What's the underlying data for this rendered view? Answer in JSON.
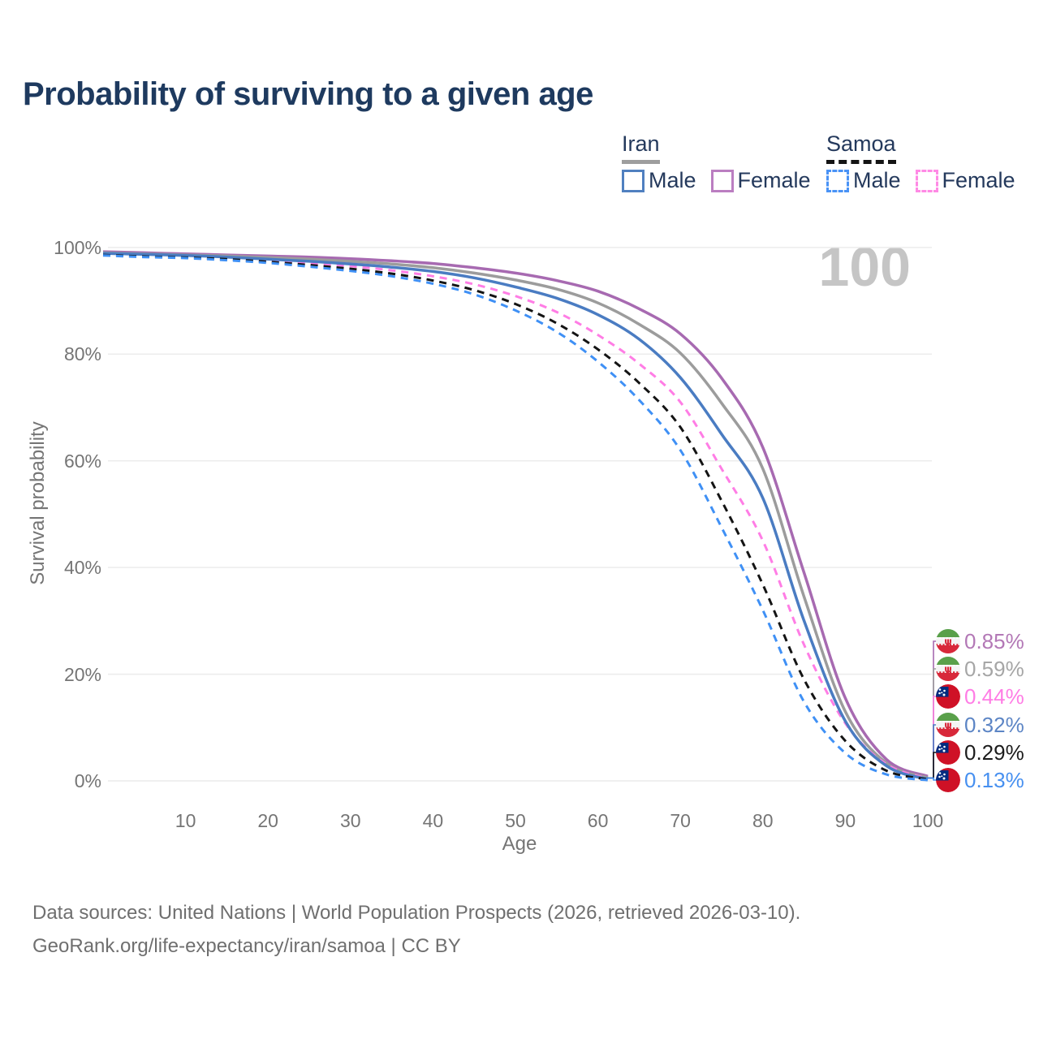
{
  "title": "Probability of surviving to a given age",
  "watermark": "100",
  "legend": {
    "groups": [
      {
        "name": "Iran",
        "underline_style": "solid",
        "underline_color": "#9e9e9e",
        "items": [
          {
            "label": "Male",
            "color": "#5080c0",
            "dashed": false
          },
          {
            "label": "Female",
            "color": "#bb7ec1",
            "dashed": false
          }
        ]
      },
      {
        "name": "Samoa",
        "underline_style": "dashed",
        "underline_color": "#141414",
        "items": [
          {
            "label": "Male",
            "color": "#4a93f6",
            "dashed": true
          },
          {
            "label": "Female",
            "color": "#ff8ae5",
            "dashed": true
          }
        ]
      }
    ]
  },
  "axes": {
    "y_title": "Survival probability",
    "y_ticks": [
      {
        "label": "0%",
        "value": 0
      },
      {
        "label": "20%",
        "value": 20
      },
      {
        "label": "40%",
        "value": 40
      },
      {
        "label": "60%",
        "value": 60
      },
      {
        "label": "80%",
        "value": 80
      },
      {
        "label": "100%",
        "value": 100
      }
    ],
    "x_title": "Age",
    "x_ticks": [
      10,
      20,
      30,
      40,
      50,
      60,
      70,
      80,
      90,
      100
    ]
  },
  "chart_data": {
    "type": "line",
    "title": "Probability of surviving to a given age",
    "xlabel": "Age",
    "ylabel": "Survival probability",
    "xlim": [
      0,
      100
    ],
    "ylim": [
      0,
      100
    ],
    "grid": "horizontal",
    "x": [
      0,
      5,
      10,
      15,
      20,
      25,
      30,
      35,
      40,
      45,
      50,
      55,
      60,
      65,
      70,
      75,
      80,
      85,
      90,
      95,
      100
    ],
    "series": [
      {
        "name": "Iran Female",
        "country": "Iran",
        "sex": "Female",
        "color": "#a76ab1",
        "dashed": false,
        "end_label": "0.85%",
        "label_color": "#b378b6",
        "flag": "iran",
        "values": [
          99.2,
          99.0,
          98.8,
          98.6,
          98.4,
          98.2,
          97.9,
          97.5,
          97.0,
          96.2,
          95.2,
          93.8,
          91.8,
          88.5,
          83.8,
          75.5,
          62.5,
          39.0,
          15.5,
          4.0,
          0.85
        ]
      },
      {
        "name": "Iran Both sexes",
        "country": "Iran",
        "sex": "Both",
        "color": "#9c9c9c",
        "dashed": false,
        "end_label": "0.59%",
        "label_color": "#a6a6a6",
        "flag": "iran",
        "values": [
          99.0,
          98.8,
          98.6,
          98.4,
          98.1,
          97.8,
          97.4,
          96.9,
          96.2,
          95.2,
          93.9,
          92.2,
          89.6,
          85.6,
          80.2,
          70.8,
          58.5,
          34.5,
          13.0,
          3.3,
          0.59
        ]
      },
      {
        "name": "Samoa Female",
        "country": "Samoa",
        "sex": "Female",
        "color": "#ff7de5",
        "dashed": true,
        "end_label": "0.44%",
        "label_color": "#ff7de5",
        "flag": "samoa",
        "values": [
          98.7,
          98.5,
          98.3,
          98.0,
          97.6,
          97.1,
          96.5,
          95.7,
          94.6,
          93.1,
          90.9,
          87.9,
          83.6,
          78.2,
          71.0,
          58.5,
          45.0,
          25.5,
          10.8,
          3.1,
          0.44
        ]
      },
      {
        "name": "Iran Male",
        "country": "Iran",
        "sex": "Male",
        "color": "#4a7cc2",
        "dashed": false,
        "end_label": "0.32%",
        "label_color": "#5c85c5",
        "flag": "iran",
        "values": [
          98.9,
          98.7,
          98.5,
          98.2,
          97.8,
          97.4,
          96.9,
          96.3,
          95.5,
          94.3,
          92.6,
          90.5,
          87.4,
          82.8,
          75.6,
          65.0,
          53.0,
          30.0,
          11.2,
          2.8,
          0.32
        ]
      },
      {
        "name": "Samoa Both sexes",
        "country": "Samoa",
        "sex": "Both",
        "color": "#141414",
        "dashed": true,
        "end_label": "0.29%",
        "label_color": "#1c1c1c",
        "flag": "samoa",
        "values": [
          98.6,
          98.3,
          98.1,
          97.8,
          97.3,
          96.7,
          96.0,
          95.1,
          93.8,
          92.0,
          89.4,
          85.8,
          80.9,
          74.6,
          66.3,
          52.5,
          36.8,
          19.0,
          7.5,
          1.9,
          0.29
        ]
      },
      {
        "name": "Samoa Male",
        "country": "Samoa",
        "sex": "Male",
        "color": "#3f90f5",
        "dashed": true,
        "end_label": "0.13%",
        "label_color": "#4790f0",
        "flag": "samoa",
        "values": [
          98.5,
          98.2,
          98.0,
          97.6,
          97.1,
          96.4,
          95.6,
          94.6,
          93.2,
          91.2,
          88.2,
          84.2,
          78.6,
          71.4,
          62.0,
          47.5,
          32.0,
          14.8,
          5.2,
          1.2,
          0.13
        ]
      }
    ]
  },
  "footer": {
    "line1": "Data sources: United Nations | World Population Prospects (2026, retrieved 2026-03-10).",
    "line2": "GeoRank.org/life-expectancy/iran/samoa | CC BY"
  }
}
